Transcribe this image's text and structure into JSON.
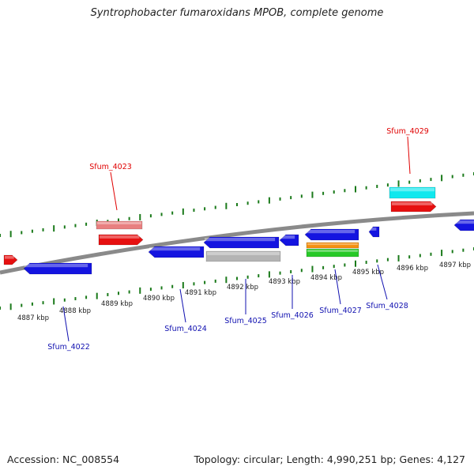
{
  "title": "Syntrophobacter fumaroxidans MPOB, complete genome",
  "footer": {
    "accession": "Accession: NC_008554",
    "summary": "Topology: circular; Length: 4,990,251 bp; Genes: 4,127"
  },
  "colors": {
    "backbone": "#8a8a8a",
    "tick": "#1a7a1a",
    "forward_label": "#e00000",
    "reverse_label": "#1010b0",
    "red": "#e61010",
    "pink": "#e88080",
    "cyan": "#10e8ee",
    "blue": "#1414e0",
    "gray": "#b4b4b4",
    "orange": "#f59010",
    "green": "#28c828"
  },
  "kbp_labels": [
    "4887 kbp",
    "4888 kbp",
    "4889 kbp",
    "4890 kbp",
    "4891 kbp",
    "4892 kbp",
    "4893 kbp",
    "4894 kbp",
    "4895 kbp",
    "4896 kbp",
    "4897 kbp"
  ],
  "gene_labels": [
    {
      "name": "Sfum_4023",
      "strand": "forward"
    },
    {
      "name": "Sfum_4029",
      "strand": "forward"
    },
    {
      "name": "Sfum_4022",
      "strand": "reverse"
    },
    {
      "name": "Sfum_4024",
      "strand": "reverse"
    },
    {
      "name": "Sfum_4025",
      "strand": "reverse"
    },
    {
      "name": "Sfum_4026",
      "strand": "reverse"
    },
    {
      "name": "Sfum_4027",
      "strand": "reverse"
    },
    {
      "name": "Sfum_4028",
      "strand": "reverse"
    }
  ],
  "features": [
    {
      "color": "red",
      "arrow": "right"
    },
    {
      "color": "pink",
      "arrow": "none"
    },
    {
      "color": "red",
      "arrow": "right"
    },
    {
      "color": "cyan",
      "arrow": "none"
    },
    {
      "color": "red",
      "arrow": "right"
    },
    {
      "color": "blue",
      "arrow": "left"
    },
    {
      "color": "blue",
      "arrow": "left"
    },
    {
      "color": "blue",
      "arrow": "left"
    },
    {
      "color": "gray",
      "arrow": "none"
    },
    {
      "color": "blue",
      "arrow": "left"
    },
    {
      "color": "blue",
      "arrow": "left"
    },
    {
      "color": "orange",
      "arrow": "none"
    },
    {
      "color": "green",
      "arrow": "none"
    },
    {
      "color": "blue",
      "arrow": "left"
    },
    {
      "color": "blue",
      "arrow": "left"
    }
  ]
}
